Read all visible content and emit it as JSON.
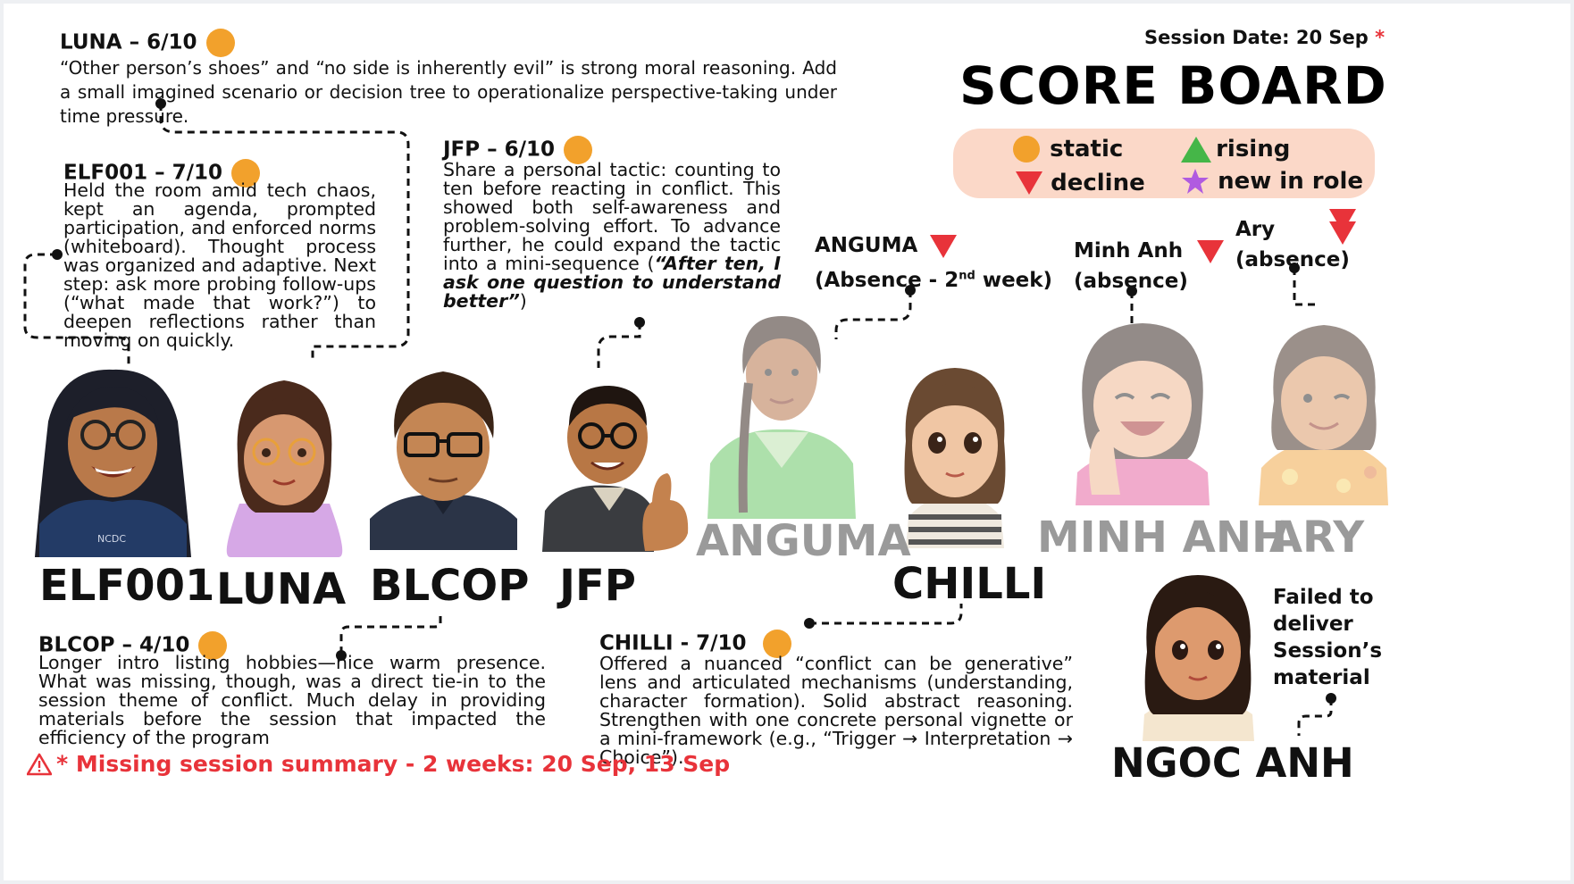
{
  "session_date": {
    "label": "Session Date: 20 Sep",
    "star": "*"
  },
  "title": "SCORE BOARD",
  "legend": {
    "static": "static",
    "rising": "rising",
    "decline": "decline",
    "new_in_role": "new in role",
    "colors": {
      "static": "#f2a12c",
      "rising": "#45b648",
      "decline": "#e8333a",
      "new_in_role": "#b05be0",
      "panel": "#fbd8c8"
    }
  },
  "luna": {
    "score": "LUNA – 6/10",
    "text": "“Other person’s shoes” and “no side is inherently evil” is strong moral reasoning. Add a small imagined scenario or decision tree to operationalize perspective-taking under time pressure.",
    "status": "static"
  },
  "elf001": {
    "score": "ELF001 – 7/10",
    "text": "Held the room amid tech chaos, kept an agenda, prompted participation, and enforced norms (whiteboard). Thought process was organized and adaptive. Next step: ask more probing follow-ups (“what made that work?”) to deepen reflections rather than moving on quickly.",
    "status": "static"
  },
  "jfp": {
    "score": "JFP – 6/10",
    "text_main": "Share a personal tactic: counting to ten before reacting in conflict. This showed both self-awareness and problem-solving effort. To advance further, he could expand the tactic into a mini-sequence (",
    "text_quote": "“After ten, I ask one question to understand better”",
    "text_end": ")",
    "status": "static"
  },
  "anguma": {
    "label": "ANGUMA",
    "sub_pre": "(Absence - 2",
    "sub_sup": "nd",
    "sub_post": " week)",
    "status": "decline"
  },
  "minh_anh": {
    "label_1": "Minh Anh",
    "label_2": "(absence)",
    "status": "decline"
  },
  "ary": {
    "label_1": "Ary",
    "label_2": "(absence)",
    "status": "decline"
  },
  "blcop": {
    "score": "BLCOP –  4/10",
    "text": "Longer intro listing hobbies—nice warm presence. What was missing, though, was a direct tie-in to the session theme of conflict. Much delay in providing materials before the session that impacted the efficiency of the program",
    "status": "static"
  },
  "chilli": {
    "score": "CHILLI - 7/10",
    "text": "Offered a nuanced “conflict can be generative” lens and articulated mechanisms (understanding, character formation). Solid abstract reasoning. Strengthen with one concrete personal vignette or a mini-framework (e.g., “Trigger → Interpretation → Choice”).",
    "status": "static"
  },
  "ngoc_anh": {
    "note_1": "Failed to",
    "note_2": "deliver",
    "note_3": "Session’s",
    "note_4": "material"
  },
  "names": {
    "elf001": "ELF001",
    "luna": "LUNA",
    "blcop": "BLCOP",
    "jfp": "JFP",
    "anguma": "ANGUMA",
    "chilli": "CHILLI",
    "minh_anh": "MINH ANH",
    "ary": "ARY",
    "ngoc_anh": "NGOC ANH"
  },
  "footer": {
    "icon": "warning-icon",
    "text": "* Missing session summary - 2 weeks: 20 Sep, 13 Sep",
    "color": "#e8333a"
  }
}
